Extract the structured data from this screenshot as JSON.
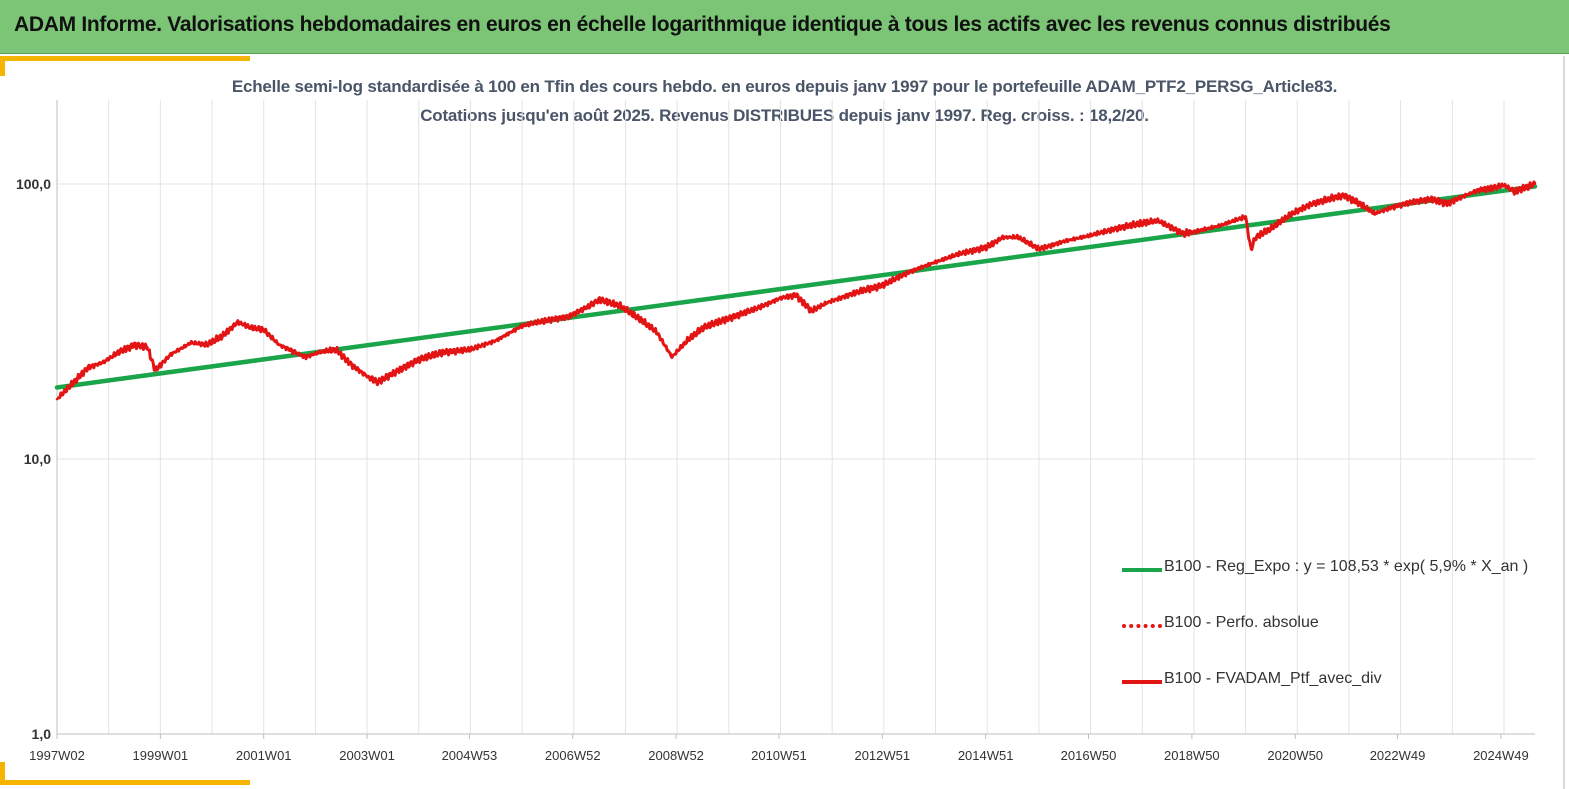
{
  "banner": {
    "title": "ADAM Informe. Valorisations hebdomadaires en euros en échelle logarithmique identique à tous les actifs avec les revenus connus distribués"
  },
  "colors": {
    "banner": "#7cc576",
    "accent": "#f5b400",
    "regression": "#1aa54a",
    "portfolio": "#e31414",
    "perf": "#e31414"
  },
  "chart_data": {
    "type": "line",
    "title": "Echelle semi-log standardisée  à 100 en Tfin des cours hebdo. en euros depuis janv 1997 pour le portefeuille ADAM_PTF2_PERSG_Article83.",
    "subtitle": "Cotations jusqu'en août 2025. Revenus DISTRIBUES depuis janv 1997. Reg. croiss. : 18,2/20.",
    "y_scale": "log",
    "ylim": [
      1,
      200
    ],
    "xlim": [
      1997.0,
      2025.6
    ],
    "y_tick_values": [
      1,
      10,
      100
    ],
    "y_tick_labels": [
      "1,0",
      "10,0",
      "100,0"
    ],
    "x_ticks": [
      {
        "x": 1997.0,
        "label": "1997W02"
      },
      {
        "x": 1999.0,
        "label": "1999W01"
      },
      {
        "x": 2001.0,
        "label": "2001W01"
      },
      {
        "x": 2003.0,
        "label": "2003W01"
      },
      {
        "x": 2004.98,
        "label": "2004W53"
      },
      {
        "x": 2006.98,
        "label": "2006W52"
      },
      {
        "x": 2008.98,
        "label": "2008W52"
      },
      {
        "x": 2010.97,
        "label": "2010W51"
      },
      {
        "x": 2012.97,
        "label": "2012W51"
      },
      {
        "x": 2014.97,
        "label": "2014W51"
      },
      {
        "x": 2016.96,
        "label": "2016W50"
      },
      {
        "x": 2018.96,
        "label": "2018W50"
      },
      {
        "x": 2020.96,
        "label": "2020W50"
      },
      {
        "x": 2022.94,
        "label": "2022W49"
      },
      {
        "x": 2024.94,
        "label": "2024W49"
      }
    ],
    "grid": {
      "vertical": true,
      "horizontal": true
    },
    "legend_position": "bottom-right",
    "legend": [
      {
        "label": "B100 - Reg_Expo : y = 108,53 * exp( 5,9% *  X_an )",
        "style": "solid",
        "color": "#1aa54a"
      },
      {
        "label": "B100 - Perfo. absolue",
        "style": "dotted",
        "color": "#e31414"
      },
      {
        "label": "B100 - FVADAM_Ptf_avec_div",
        "style": "solid",
        "color": "#e31414"
      }
    ],
    "series": [
      {
        "name": "B100 - Reg_Expo : y = 108,53 * exp( 5,9% *  X_an )",
        "color": "#1aa54a",
        "x": [
          1997.0,
          2025.6
        ],
        "values": [
          18.2,
          98.0
        ]
      },
      {
        "name": "B100 - FVADAM_Ptf_avec_div",
        "color": "#e31414",
        "x": [
          1997.0,
          1997.3,
          1997.6,
          1997.9,
          1998.2,
          1998.5,
          1998.75,
          1998.9,
          1999.2,
          1999.6,
          1999.9,
          2000.2,
          2000.5,
          2000.75,
          2001.0,
          2001.3,
          2001.6,
          2001.8,
          2002.1,
          2002.4,
          2002.7,
          2003.0,
          2003.2,
          2003.6,
          2004.0,
          2004.5,
          2005.0,
          2005.5,
          2006.0,
          2006.5,
          2006.9,
          2007.3,
          2007.5,
          2007.9,
          2008.3,
          2008.6,
          2008.9,
          2009.2,
          2009.5,
          2010.0,
          2010.5,
          2011.0,
          2011.3,
          2011.6,
          2011.9,
          2012.4,
          2013.0,
          2013.5,
          2014.0,
          2014.5,
          2015.0,
          2015.3,
          2015.6,
          2016.0,
          2016.5,
          2017.0,
          2017.5,
          2018.0,
          2018.3,
          2018.8,
          2019.0,
          2019.5,
          2020.0,
          2020.1,
          2020.2,
          2020.5,
          2020.9,
          2021.3,
          2021.9,
          2022.2,
          2022.5,
          2022.8,
          2023.2,
          2023.6,
          2023.9,
          2024.2,
          2024.5,
          2024.8,
          2025.0,
          2025.2,
          2025.6
        ],
        "values": [
          16.5,
          18.8,
          21.5,
          22.5,
          24.5,
          26.0,
          25.5,
          21.0,
          24.0,
          26.5,
          26.0,
          28.0,
          31.5,
          30.0,
          29.5,
          26.0,
          24.5,
          23.5,
          24.5,
          25.0,
          22.0,
          20.0,
          19.0,
          21.0,
          23.0,
          24.5,
          25.0,
          27.0,
          30.5,
          32.0,
          33.0,
          36.0,
          38.0,
          36.0,
          32.0,
          29.0,
          23.5,
          27.0,
          30.0,
          32.5,
          35.0,
          38.5,
          39.5,
          34.5,
          37.0,
          40.0,
          43.0,
          48.0,
          52.0,
          56.0,
          59.0,
          64.0,
          64.0,
          58.0,
          62.0,
          65.0,
          69.0,
          72.0,
          73.5,
          66.0,
          67.0,
          70.5,
          76.0,
          58.0,
          64.0,
          69.0,
          78.0,
          85.0,
          91.0,
          85.0,
          78.0,
          82.0,
          86.0,
          88.0,
          85.0,
          90.0,
          95.0,
          97.0,
          99.0,
          94.0,
          100.0
        ]
      }
    ]
  }
}
